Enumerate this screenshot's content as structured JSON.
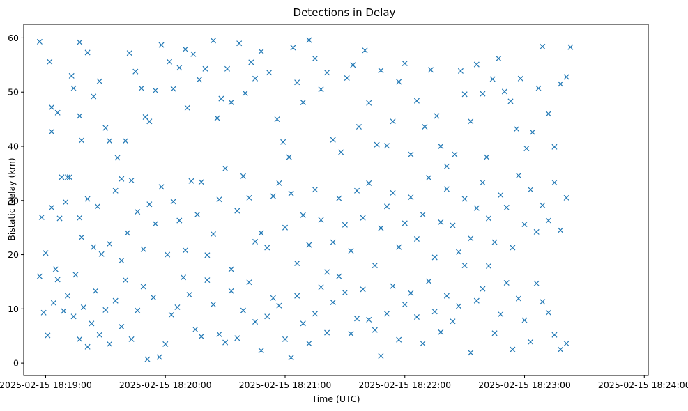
{
  "chart_data": {
    "type": "scatter",
    "title": "Detections in Delay",
    "xlabel": "Time (UTC)",
    "ylabel": "Bistatic Delay (km)",
    "x_format": "time",
    "x_date": "2025-02-15",
    "xlim": [
      "18:18:49",
      "18:24:02"
    ],
    "ylim": [
      -2.3,
      62.5
    ],
    "grid": false,
    "marker": "x",
    "color": "#1f77b4",
    "x_ticks": [
      {
        "value": "18:19:00",
        "label": "2025-02-15 18:19:00"
      },
      {
        "value": "18:20:00",
        "label": "2025-02-15 18:20:00"
      },
      {
        "value": "18:21:00",
        "label": "2025-02-15 18:21:00"
      },
      {
        "value": "18:22:00",
        "label": "2025-02-15 18:22:00"
      },
      {
        "value": "18:23:00",
        "label": "2025-02-15 18:23:00"
      },
      {
        "value": "18:24:00",
        "label": "2025-02-15 18:24:00"
      }
    ],
    "y_ticks": [
      {
        "value": 0,
        "label": "0"
      },
      {
        "value": 10,
        "label": "10"
      },
      {
        "value": 20,
        "label": "20"
      },
      {
        "value": 30,
        "label": "30"
      },
      {
        "value": 40,
        "label": "40"
      },
      {
        "value": 50,
        "label": "50"
      },
      {
        "value": 60,
        "label": "60"
      }
    ],
    "points": [
      [
        "18:18:57",
        59.3
      ],
      [
        "18:19:02",
        55.6
      ],
      [
        "18:19:03",
        47.2
      ],
      [
        "18:19:03",
        42.7
      ],
      [
        "18:19:06",
        46.2
      ],
      [
        "18:19:08",
        34.3
      ],
      [
        "18:19:11",
        34.3
      ],
      [
        "18:19:13",
        53.0
      ],
      [
        "18:19:14",
        50.7
      ],
      [
        "18:19:17",
        59.2
      ],
      [
        "18:19:17",
        45.6
      ],
      [
        "18:19:18",
        41.1
      ],
      [
        "18:19:21",
        57.3
      ],
      [
        "18:19:24",
        49.2
      ],
      [
        "18:19:27",
        52.0
      ],
      [
        "18:19:30",
        43.4
      ],
      [
        "18:19:32",
        41.0
      ],
      [
        "18:19:36",
        37.9
      ],
      [
        "18:19:38",
        34.0
      ],
      [
        "18:19:40",
        41.0
      ],
      [
        "18:19:42",
        57.2
      ],
      [
        "18:19:45",
        53.8
      ],
      [
        "18:19:48",
        50.7
      ],
      [
        "18:19:50",
        45.4
      ],
      [
        "18:19:52",
        44.6
      ],
      [
        "18:19:55",
        50.3
      ],
      [
        "18:19:58",
        58.7
      ],
      [
        "18:20:02",
        55.6
      ],
      [
        "18:20:04",
        50.6
      ],
      [
        "18:20:07",
        54.5
      ],
      [
        "18:20:10",
        57.9
      ],
      [
        "18:20:11",
        47.1
      ],
      [
        "18:20:14",
        57.0
      ],
      [
        "18:20:17",
        52.3
      ],
      [
        "18:20:20",
        54.3
      ],
      [
        "18:20:24",
        59.5
      ],
      [
        "18:20:26",
        45.2
      ],
      [
        "18:20:28",
        48.8
      ],
      [
        "18:20:31",
        54.3
      ],
      [
        "18:20:33",
        48.1
      ],
      [
        "18:20:37",
        59.0
      ],
      [
        "18:20:40",
        49.8
      ],
      [
        "18:20:43",
        55.5
      ],
      [
        "18:20:45",
        52.5
      ],
      [
        "18:20:48",
        57.5
      ],
      [
        "18:20:52",
        53.6
      ],
      [
        "18:20:56",
        45.0
      ],
      [
        "18:20:59",
        40.8
      ],
      [
        "18:21:02",
        38.0
      ],
      [
        "18:21:04",
        58.2
      ],
      [
        "18:21:06",
        51.8
      ],
      [
        "18:21:09",
        48.1
      ],
      [
        "18:21:12",
        59.6
      ],
      [
        "18:21:15",
        56.2
      ],
      [
        "18:21:18",
        50.5
      ],
      [
        "18:21:21",
        53.6
      ],
      [
        "18:21:24",
        41.2
      ],
      [
        "18:21:28",
        38.9
      ],
      [
        "18:21:31",
        52.6
      ],
      [
        "18:21:34",
        55.0
      ],
      [
        "18:21:37",
        43.6
      ],
      [
        "18:21:40",
        57.7
      ],
      [
        "18:21:42",
        48.0
      ],
      [
        "18:21:46",
        40.3
      ],
      [
        "18:21:48",
        54.0
      ],
      [
        "18:21:51",
        40.1
      ],
      [
        "18:21:54",
        44.6
      ],
      [
        "18:21:57",
        51.9
      ],
      [
        "18:22:00",
        55.3
      ],
      [
        "18:22:03",
        38.5
      ],
      [
        "18:22:06",
        48.4
      ],
      [
        "18:22:10",
        43.6
      ],
      [
        "18:22:13",
        54.1
      ],
      [
        "18:22:16",
        45.6
      ],
      [
        "18:22:18",
        40.0
      ],
      [
        "18:22:21",
        36.3
      ],
      [
        "18:22:25",
        38.5
      ],
      [
        "18:22:28",
        53.9
      ],
      [
        "18:22:30",
        49.6
      ],
      [
        "18:22:33",
        44.6
      ],
      [
        "18:22:36",
        55.1
      ],
      [
        "18:22:39",
        49.7
      ],
      [
        "18:22:41",
        38.0
      ],
      [
        "18:22:44",
        52.4
      ],
      [
        "18:22:47",
        56.2
      ],
      [
        "18:22:50",
        50.1
      ],
      [
        "18:22:53",
        48.3
      ],
      [
        "18:22:56",
        43.2
      ],
      [
        "18:22:58",
        52.5
      ],
      [
        "18:23:01",
        39.6
      ],
      [
        "18:23:04",
        42.6
      ],
      [
        "18:23:07",
        50.7
      ],
      [
        "18:23:09",
        58.4
      ],
      [
        "18:23:12",
        46.0
      ],
      [
        "18:23:15",
        39.9
      ],
      [
        "18:23:18",
        51.5
      ],
      [
        "18:23:21",
        52.8
      ],
      [
        "18:23:23",
        58.3
      ],
      [
        "18:18:58",
        26.9
      ],
      [
        "18:19:00",
        20.3
      ],
      [
        "18:19:03",
        28.7
      ],
      [
        "18:19:05",
        17.3
      ],
      [
        "18:19:07",
        26.7
      ],
      [
        "18:19:10",
        29.7
      ],
      [
        "18:19:12",
        34.3
      ],
      [
        "18:19:15",
        16.3
      ],
      [
        "18:19:17",
        26.8
      ],
      [
        "18:19:18",
        23.2
      ],
      [
        "18:19:21",
        30.3
      ],
      [
        "18:19:24",
        21.4
      ],
      [
        "18:19:26",
        28.9
      ],
      [
        "18:19:28",
        20.1
      ],
      [
        "18:19:32",
        22.0
      ],
      [
        "18:19:35",
        31.8
      ],
      [
        "18:19:38",
        18.9
      ],
      [
        "18:19:41",
        24.0
      ],
      [
        "18:19:43",
        33.7
      ],
      [
        "18:19:46",
        27.9
      ],
      [
        "18:19:49",
        21.0
      ],
      [
        "18:19:52",
        29.3
      ],
      [
        "18:19:55",
        25.7
      ],
      [
        "18:19:58",
        32.5
      ],
      [
        "18:20:01",
        20.0
      ],
      [
        "18:20:04",
        29.8
      ],
      [
        "18:20:07",
        26.3
      ],
      [
        "18:20:10",
        20.8
      ],
      [
        "18:20:13",
        33.6
      ],
      [
        "18:20:16",
        27.4
      ],
      [
        "18:20:18",
        33.4
      ],
      [
        "18:20:21",
        19.9
      ],
      [
        "18:20:24",
        23.8
      ],
      [
        "18:20:27",
        30.2
      ],
      [
        "18:20:30",
        35.9
      ],
      [
        "18:20:33",
        17.3
      ],
      [
        "18:20:36",
        28.1
      ],
      [
        "18:20:39",
        34.5
      ],
      [
        "18:20:42",
        30.5
      ],
      [
        "18:20:45",
        22.4
      ],
      [
        "18:20:48",
        24.0
      ],
      [
        "18:20:51",
        21.3
      ],
      [
        "18:20:54",
        30.8
      ],
      [
        "18:20:57",
        33.2
      ],
      [
        "18:21:00",
        25.0
      ],
      [
        "18:21:03",
        31.3
      ],
      [
        "18:21:06",
        18.4
      ],
      [
        "18:21:09",
        27.3
      ],
      [
        "18:21:12",
        21.8
      ],
      [
        "18:21:15",
        32.0
      ],
      [
        "18:21:18",
        26.4
      ],
      [
        "18:21:21",
        16.8
      ],
      [
        "18:21:24",
        22.3
      ],
      [
        "18:21:27",
        30.4
      ],
      [
        "18:21:30",
        25.5
      ],
      [
        "18:21:33",
        20.7
      ],
      [
        "18:21:36",
        31.8
      ],
      [
        "18:21:39",
        26.8
      ],
      [
        "18:21:42",
        33.2
      ],
      [
        "18:21:45",
        18.0
      ],
      [
        "18:21:48",
        24.9
      ],
      [
        "18:21:51",
        28.9
      ],
      [
        "18:21:54",
        31.4
      ],
      [
        "18:21:57",
        21.4
      ],
      [
        "18:22:00",
        25.8
      ],
      [
        "18:22:03",
        30.6
      ],
      [
        "18:22:06",
        22.9
      ],
      [
        "18:22:09",
        27.4
      ],
      [
        "18:22:12",
        34.2
      ],
      [
        "18:22:15",
        19.5
      ],
      [
        "18:22:18",
        26.0
      ],
      [
        "18:22:21",
        32.1
      ],
      [
        "18:22:24",
        25.4
      ],
      [
        "18:22:27",
        20.5
      ],
      [
        "18:22:30",
        30.3
      ],
      [
        "18:22:33",
        23.0
      ],
      [
        "18:22:36",
        28.6
      ],
      [
        "18:22:39",
        33.3
      ],
      [
        "18:22:42",
        26.7
      ],
      [
        "18:22:45",
        22.3
      ],
      [
        "18:22:48",
        31.0
      ],
      [
        "18:22:51",
        28.7
      ],
      [
        "18:22:54",
        21.3
      ],
      [
        "18:22:57",
        34.6
      ],
      [
        "18:23:00",
        25.6
      ],
      [
        "18:23:03",
        32.0
      ],
      [
        "18:23:06",
        24.2
      ],
      [
        "18:23:09",
        29.1
      ],
      [
        "18:23:12",
        26.3
      ],
      [
        "18:23:15",
        33.3
      ],
      [
        "18:23:18",
        24.5
      ],
      [
        "18:23:21",
        30.5
      ],
      [
        "18:18:57",
        16.0
      ],
      [
        "18:18:59",
        9.3
      ],
      [
        "18:19:01",
        5.1
      ],
      [
        "18:19:04",
        11.1
      ],
      [
        "18:19:06",
        15.4
      ],
      [
        "18:19:09",
        9.6
      ],
      [
        "18:19:11",
        12.4
      ],
      [
        "18:19:14",
        8.6
      ],
      [
        "18:19:17",
        4.4
      ],
      [
        "18:19:19",
        10.3
      ],
      [
        "18:19:21",
        3.0
      ],
      [
        "18:19:23",
        7.3
      ],
      [
        "18:19:25",
        13.3
      ],
      [
        "18:19:27",
        5.2
      ],
      [
        "18:19:30",
        9.8
      ],
      [
        "18:19:32",
        3.5
      ],
      [
        "18:19:35",
        11.5
      ],
      [
        "18:19:38",
        6.7
      ],
      [
        "18:19:40",
        15.3
      ],
      [
        "18:19:43",
        4.4
      ],
      [
        "18:19:46",
        9.7
      ],
      [
        "18:19:49",
        14.1
      ],
      [
        "18:19:51",
        0.7
      ],
      [
        "18:19:54",
        12.1
      ],
      [
        "18:19:57",
        1.1
      ],
      [
        "18:20:00",
        3.5
      ],
      [
        "18:20:03",
        8.9
      ],
      [
        "18:20:06",
        10.3
      ],
      [
        "18:20:09",
        15.8
      ],
      [
        "18:20:12",
        12.6
      ],
      [
        "18:20:15",
        6.2
      ],
      [
        "18:20:18",
        4.9
      ],
      [
        "18:20:21",
        15.3
      ],
      [
        "18:20:24",
        10.8
      ],
      [
        "18:20:27",
        5.3
      ],
      [
        "18:20:30",
        3.8
      ],
      [
        "18:20:33",
        13.3
      ],
      [
        "18:20:36",
        4.6
      ],
      [
        "18:20:39",
        9.7
      ],
      [
        "18:20:42",
        14.9
      ],
      [
        "18:20:45",
        7.6
      ],
      [
        "18:20:48",
        2.3
      ],
      [
        "18:20:51",
        8.6
      ],
      [
        "18:20:54",
        12.0
      ],
      [
        "18:20:57",
        10.6
      ],
      [
        "18:21:00",
        4.4
      ],
      [
        "18:21:03",
        1.0
      ],
      [
        "18:21:06",
        12.4
      ],
      [
        "18:21:09",
        7.3
      ],
      [
        "18:21:12",
        3.6
      ],
      [
        "18:21:15",
        9.1
      ],
      [
        "18:21:18",
        14.0
      ],
      [
        "18:21:21",
        5.6
      ],
      [
        "18:21:24",
        11.2
      ],
      [
        "18:21:27",
        16.0
      ],
      [
        "18:21:30",
        13.0
      ],
      [
        "18:21:33",
        5.4
      ],
      [
        "18:21:36",
        8.2
      ],
      [
        "18:21:39",
        13.6
      ],
      [
        "18:21:42",
        8.0
      ],
      [
        "18:21:45",
        6.1
      ],
      [
        "18:21:48",
        1.3
      ],
      [
        "18:21:51",
        9.1
      ],
      [
        "18:21:54",
        14.2
      ],
      [
        "18:21:57",
        4.3
      ],
      [
        "18:22:00",
        10.8
      ],
      [
        "18:22:03",
        12.9
      ],
      [
        "18:22:06",
        8.5
      ],
      [
        "18:22:09",
        3.6
      ],
      [
        "18:22:12",
        15.1
      ],
      [
        "18:22:15",
        9.5
      ],
      [
        "18:22:18",
        5.7
      ],
      [
        "18:22:21",
        12.4
      ],
      [
        "18:22:24",
        7.7
      ],
      [
        "18:22:27",
        10.5
      ],
      [
        "18:22:30",
        18.0
      ],
      [
        "18:22:33",
        1.9
      ],
      [
        "18:22:36",
        11.5
      ],
      [
        "18:22:39",
        13.7
      ],
      [
        "18:22:42",
        17.9
      ],
      [
        "18:22:45",
        5.5
      ],
      [
        "18:22:48",
        9.0
      ],
      [
        "18:22:51",
        14.8
      ],
      [
        "18:22:54",
        2.5
      ],
      [
        "18:22:57",
        11.9
      ],
      [
        "18:23:00",
        7.9
      ],
      [
        "18:23:03",
        3.9
      ],
      [
        "18:23:06",
        14.7
      ],
      [
        "18:23:09",
        11.3
      ],
      [
        "18:23:12",
        9.3
      ],
      [
        "18:23:15",
        5.2
      ],
      [
        "18:23:18",
        2.5
      ],
      [
        "18:23:21",
        3.6
      ]
    ]
  }
}
